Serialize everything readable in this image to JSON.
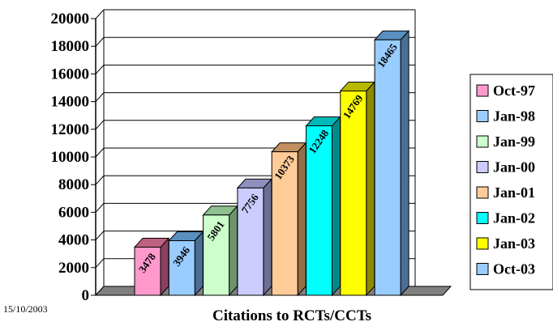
{
  "footer": {
    "date": "15/10/2003"
  },
  "chart_data": {
    "type": "bar",
    "title": "",
    "xlabel": "Citations to RCTs/CCTs",
    "ylabel": "",
    "ylim": [
      0,
      20000
    ],
    "yticks": [
      "0",
      "2000",
      "4000",
      "6000",
      "8000",
      "10000",
      "12000",
      "14000",
      "16000",
      "18000",
      "20000"
    ],
    "grid": true,
    "legend_position": "right",
    "categories": [
      "Oct-97",
      "Jan-98",
      "Jan-99",
      "Jan-00",
      "Jan-01",
      "Jan-02",
      "Jan-03",
      "Oct-03"
    ],
    "values": [
      3478,
      3946,
      5801,
      7756,
      10373,
      12248,
      14769,
      18465
    ],
    "data_labels": [
      "3478",
      "3946",
      "5801",
      "7756",
      "10373",
      "12248",
      "14769",
      "18465"
    ],
    "colors": [
      "#ff99cc",
      "#99ccff",
      "#ccffcc",
      "#ccccff",
      "#ffcc99",
      "#00ffff",
      "#ffff00",
      "#99ccff"
    ],
    "top_colors": [
      "#c06080",
      "#5a8fc0",
      "#8fc08f",
      "#9090c0",
      "#c09060",
      "#00b8b8",
      "#b8b800",
      "#5a8fc0"
    ],
    "side_colors": [
      "#8a4060",
      "#4a6e94",
      "#6e946e",
      "#6e6e94",
      "#946e48",
      "#008a8a",
      "#8a8a00",
      "#4a6e94"
    ]
  }
}
